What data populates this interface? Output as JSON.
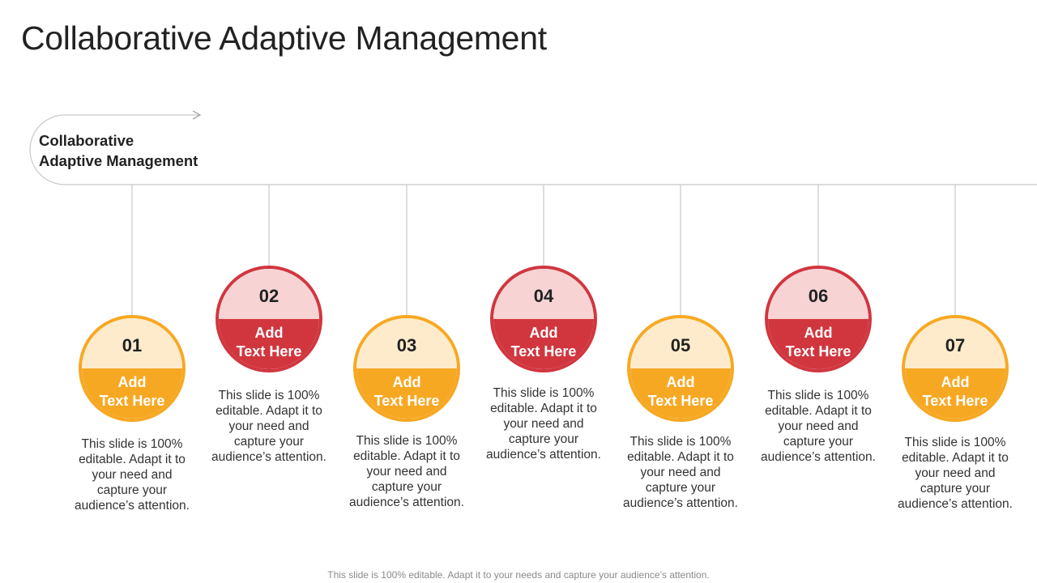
{
  "title": "Collaborative Adaptive Management",
  "header": {
    "line1": "Collaborative",
    "line2": "Adaptive Management"
  },
  "colors": {
    "yellow": "#F7A823",
    "yellow_light": "#FDEBCB",
    "red": "#D1363F",
    "red_light": "#F7D3D4",
    "line": "#c8c8c8"
  },
  "steps": [
    {
      "number": "01",
      "label_line1": "Add",
      "label_line2": "Text Here",
      "color": "yellow",
      "desc": [
        "This slide is 100%",
        "editable. Adapt it to",
        "your need and",
        "capture your",
        "audience’s attention."
      ]
    },
    {
      "number": "02",
      "label_line1": "Add",
      "label_line2": "Text Here",
      "color": "red",
      "desc": [
        "This slide is 100%",
        "editable. Adapt it to",
        "your need and",
        "capture your",
        "audience’s attention."
      ]
    },
    {
      "number": "03",
      "label_line1": "Add",
      "label_line2": "Text Here",
      "color": "yellow",
      "desc": [
        "This slide is 100%",
        "editable. Adapt it to",
        "your need and",
        "capture your",
        "audience’s attention."
      ]
    },
    {
      "number": "04",
      "label_line1": "Add",
      "label_line2": "Text Here",
      "color": "red",
      "desc": [
        "This slide is 100%",
        "editable. Adapt it to",
        "your need and",
        "capture your",
        "audience’s attention."
      ]
    },
    {
      "number": "05",
      "label_line1": "Add",
      "label_line2": "Text Here",
      "color": "yellow",
      "desc": [
        "This slide is 100%",
        "editable. Adapt it to",
        "your need and",
        "capture your",
        "audience’s attention."
      ]
    },
    {
      "number": "06",
      "label_line1": "Add",
      "label_line2": "Text Here",
      "color": "red",
      "desc": [
        "This slide is 100%",
        "editable. Adapt it to",
        "your need and",
        "capture your",
        "audience’s attention."
      ]
    },
    {
      "number": "07",
      "label_line1": "Add",
      "label_line2": "Text Here",
      "color": "yellow",
      "desc": [
        "This slide is 100%",
        "editable. Adapt it to",
        "your need and",
        "capture your",
        "audience’s attention."
      ]
    }
  ],
  "footer": "This slide is 100% editable. Adapt it to your needs and capture your audience’s attention."
}
